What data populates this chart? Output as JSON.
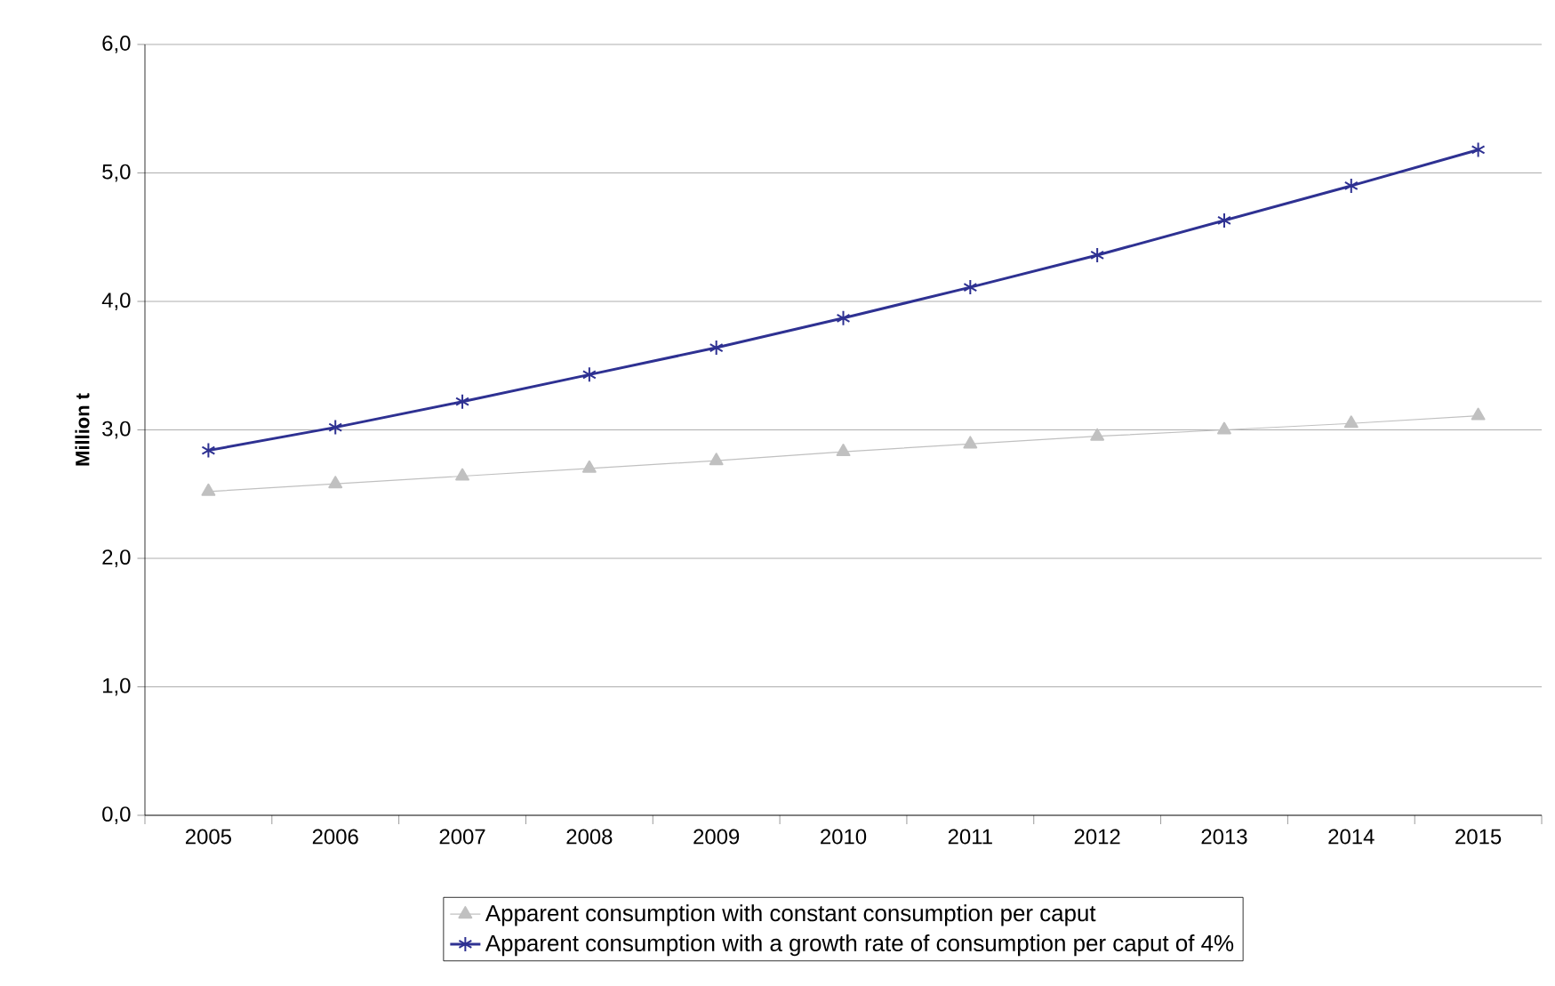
{
  "chart_data": {
    "type": "line",
    "ylabel": "Million t",
    "categories": [
      "2005",
      "2006",
      "2007",
      "2008",
      "2009",
      "2010",
      "2011",
      "2012",
      "2013",
      "2014",
      "2015"
    ],
    "series": [
      {
        "name": "Apparent consumption with constant consumption per caput",
        "color": "#c0c0c0",
        "marker": "triangle",
        "values": [
          2.52,
          2.58,
          2.64,
          2.7,
          2.76,
          2.83,
          2.89,
          2.95,
          3.0,
          3.05,
          3.11
        ]
      },
      {
        "name": "Apparent consumption with a growth rate of consumption per caput of 4%",
        "color": "#2e3192",
        "marker": "cross",
        "values": [
          2.84,
          3.02,
          3.22,
          3.43,
          3.64,
          3.87,
          4.11,
          4.36,
          4.63,
          4.9,
          5.18
        ]
      }
    ],
    "ylim": [
      0,
      6
    ],
    "yticks": [
      {
        "value": 0,
        "label": "0,0"
      },
      {
        "value": 1,
        "label": "1,0"
      },
      {
        "value": 2,
        "label": "2,0"
      },
      {
        "value": 3,
        "label": "3,0"
      },
      {
        "value": 4,
        "label": "4,0"
      },
      {
        "value": 5,
        "label": "5,0"
      },
      {
        "value": 6,
        "label": "6,0"
      }
    ],
    "grid": "y",
    "legend": "bottom",
    "line_style": "solid"
  }
}
